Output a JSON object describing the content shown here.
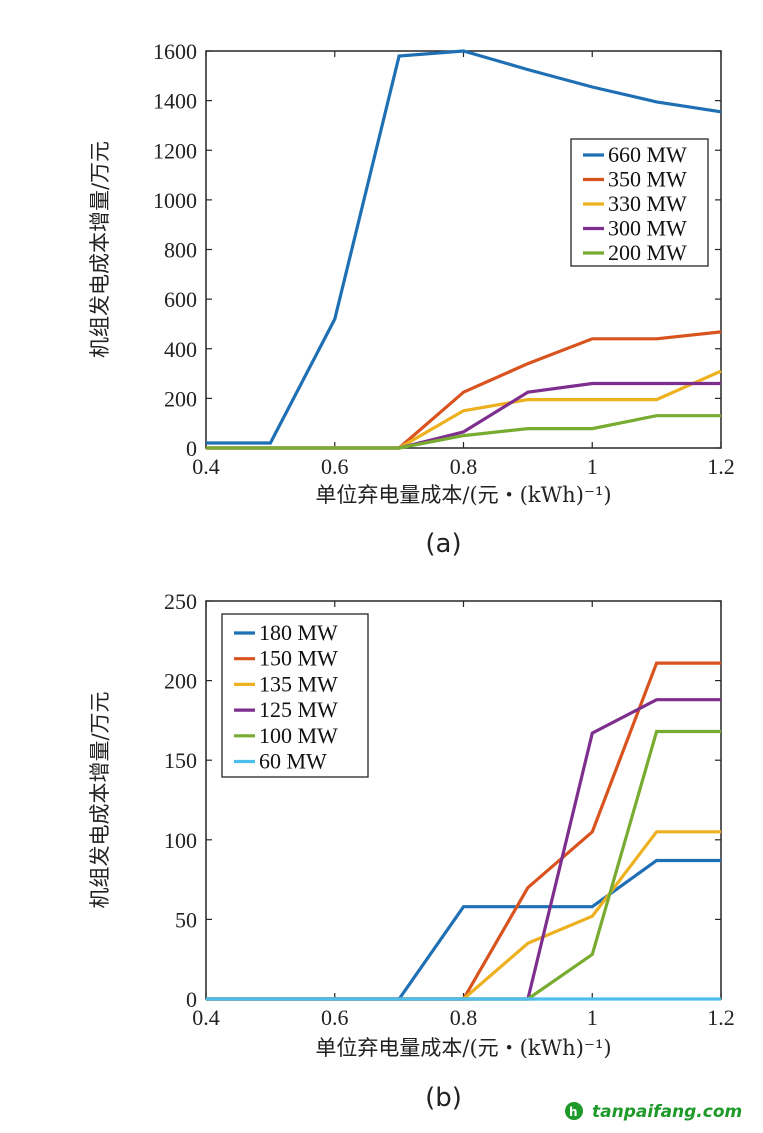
{
  "chart_data": [
    {
      "type": "line",
      "panel_label": "(a)",
      "xlabel": "单位弃电量成本/(元・(kWh)⁻¹)",
      "ylabel": "机组发电成本增量/万元",
      "xlim": [
        0.4,
        1.2
      ],
      "ylim": [
        0,
        1600
      ],
      "xticks": [
        0.4,
        0.6,
        0.8,
        1,
        1.2
      ],
      "xtick_labels": [
        "0.4",
        "0.6",
        "0.8",
        "1",
        "1.2"
      ],
      "yticks": [
        0,
        200,
        400,
        600,
        800,
        1000,
        1200,
        1400,
        1600
      ],
      "ytick_labels": [
        "0",
        "200",
        "400",
        "600",
        "800",
        "1000",
        "1200",
        "1400",
        "1600"
      ],
      "grid": false,
      "legend_position": "right",
      "x": [
        0.4,
        0.5,
        0.6,
        0.7,
        0.8,
        0.9,
        1.0,
        1.1,
        1.2
      ],
      "series": [
        {
          "name": "660 MW",
          "color": "#1f6fb4",
          "values": [
            20,
            20,
            520,
            1580,
            1600,
            1525,
            1455,
            1395,
            1355
          ]
        },
        {
          "name": "350 MW",
          "color": "#d9531e",
          "values": [
            0,
            0,
            0,
            0,
            225,
            340,
            440,
            440,
            468
          ]
        },
        {
          "name": "330 MW",
          "color": "#edb120",
          "values": [
            0,
            0,
            0,
            0,
            150,
            195,
            195,
            195,
            310
          ]
        },
        {
          "name": "300 MW",
          "color": "#7e2f8e",
          "values": [
            0,
            0,
            0,
            0,
            65,
            225,
            260,
            260,
            260
          ]
        },
        {
          "name": "200 MW",
          "color": "#77ac30",
          "values": [
            0,
            0,
            0,
            0,
            50,
            78,
            78,
            130,
            130
          ]
        }
      ]
    },
    {
      "type": "line",
      "panel_label": "(b)",
      "xlabel": "单位弃电量成本/(元・(kWh)⁻¹)",
      "ylabel": "机组发电成本增量/万元",
      "xlim": [
        0.4,
        1.2
      ],
      "ylim": [
        0,
        250
      ],
      "xticks": [
        0.4,
        0.6,
        0.8,
        1,
        1.2
      ],
      "xtick_labels": [
        "0.4",
        "0.6",
        "0.8",
        "1",
        "1.2"
      ],
      "yticks": [
        0,
        50,
        100,
        150,
        200,
        250
      ],
      "ytick_labels": [
        "0",
        "50",
        "100",
        "150",
        "200",
        "250"
      ],
      "grid": false,
      "legend_position": "top-left",
      "x": [
        0.4,
        0.5,
        0.6,
        0.7,
        0.8,
        0.9,
        1.0,
        1.1,
        1.2
      ],
      "series": [
        {
          "name": "180 MW",
          "color": "#1f6fb4",
          "values": [
            0,
            0,
            0,
            0,
            58,
            58,
            58,
            87,
            87
          ]
        },
        {
          "name": "150 MW",
          "color": "#d9531e",
          "values": [
            0,
            0,
            0,
            0,
            0,
            70,
            105,
            211,
            211
          ]
        },
        {
          "name": "135 MW",
          "color": "#edb120",
          "values": [
            0,
            0,
            0,
            0,
            0,
            35,
            52,
            105,
            105
          ]
        },
        {
          "name": "125 MW",
          "color": "#7e2f8e",
          "values": [
            0,
            0,
            0,
            0,
            0,
            0,
            167,
            188,
            188
          ]
        },
        {
          "name": "100 MW",
          "color": "#77ac30",
          "values": [
            0,
            0,
            0,
            0,
            0,
            0,
            28,
            168,
            168
          ]
        },
        {
          "name": "60 MW",
          "color": "#4dbeee",
          "values": [
            0,
            0,
            0,
            0,
            0,
            0,
            0,
            0,
            0
          ]
        }
      ]
    }
  ],
  "watermark": {
    "text": "tanpaifang.com",
    "color": "#1f9a2a"
  }
}
